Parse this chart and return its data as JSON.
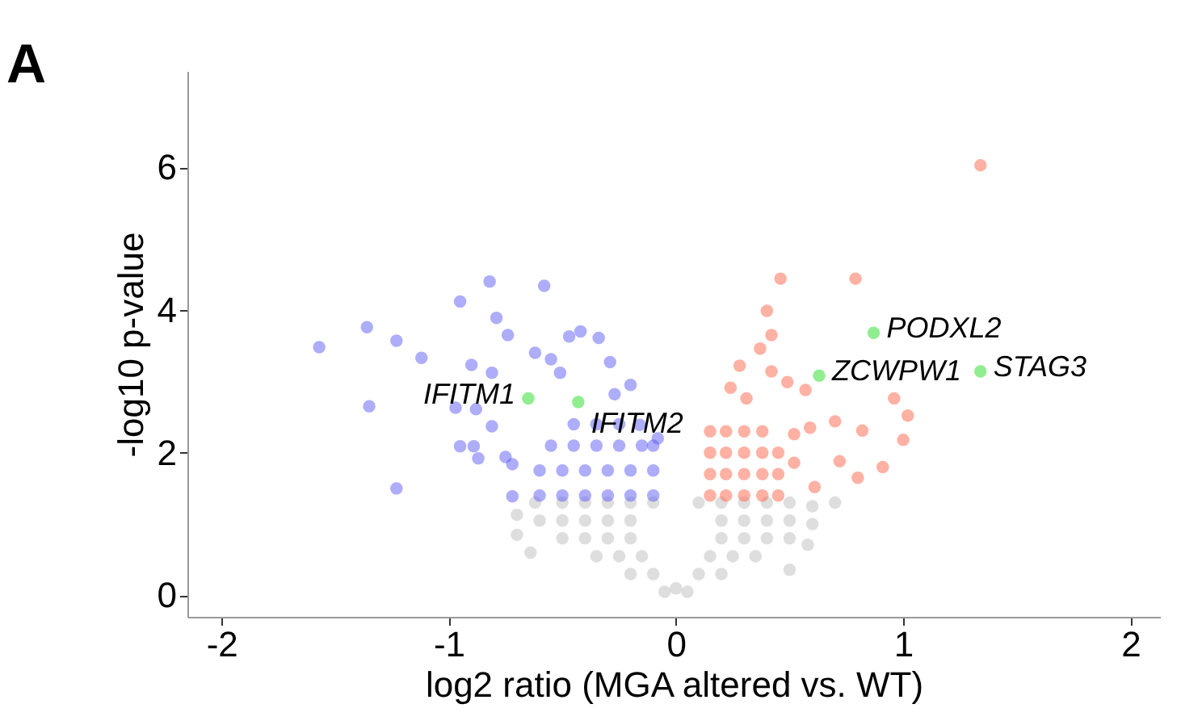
{
  "chart_data": {
    "type": "scatter",
    "xlabel": "log2 ratio (MGA altered vs. WT)",
    "ylabel": "-log10 p-value",
    "xlim": [
      -2.15,
      2.13
    ],
    "ylim": [
      -0.3,
      7.35
    ],
    "xticks": [
      -2,
      -1,
      0,
      1,
      2
    ],
    "yticks": [
      0,
      2,
      4,
      6
    ],
    "grid": false,
    "marker": "circle",
    "series": [
      {
        "color": "#bebebe",
        "x": [
          -0.05,
          0.0,
          0.05,
          -0.2,
          -0.1,
          0.1,
          0.2,
          -0.35,
          -0.25,
          -0.15,
          0.15,
          0.25,
          0.35,
          -0.5,
          -0.4,
          -0.3,
          -0.2,
          0.2,
          0.3,
          0.4,
          0.5,
          -0.6,
          -0.5,
          -0.4,
          -0.3,
          -0.2,
          0.2,
          0.3,
          0.4,
          0.5,
          0.6,
          -0.62,
          -0.5,
          -0.4,
          -0.3,
          -0.2,
          -0.1,
          0.1,
          0.2,
          0.3,
          0.4,
          0.5,
          0.6,
          -0.7,
          -0.7,
          -0.64,
          0.7,
          0.58,
          0.5
        ],
        "values": [
          0.05,
          0.1,
          0.05,
          0.3,
          0.3,
          0.3,
          0.3,
          0.55,
          0.55,
          0.55,
          0.55,
          0.55,
          0.55,
          0.8,
          0.8,
          0.8,
          0.8,
          0.8,
          0.8,
          0.8,
          0.8,
          1.05,
          1.05,
          1.05,
          1.05,
          1.05,
          1.05,
          1.05,
          1.05,
          1.05,
          1.0,
          1.3,
          1.3,
          1.3,
          1.3,
          1.3,
          1.3,
          1.3,
          1.3,
          1.3,
          1.3,
          1.3,
          1.25,
          1.13,
          0.85,
          0.6,
          1.3,
          0.71,
          0.36
        ]
      },
      {
        "color": "#5b5bf5",
        "x": [
          -1.57,
          -1.36,
          -1.23,
          -1.35,
          -1.23,
          -1.12,
          -0.95,
          -0.82,
          -0.58,
          -0.9,
          -0.89,
          -0.75,
          -0.79,
          -0.74,
          -0.47,
          -0.42,
          -0.34,
          -0.29,
          -0.2,
          -0.62,
          -0.55,
          -0.51,
          -0.81,
          -0.88,
          -0.97,
          -0.95,
          -0.87,
          -0.72,
          -0.81,
          -0.72,
          -0.27,
          -0.16,
          -0.6,
          -0.5,
          -0.4,
          -0.3,
          -0.2,
          -0.1,
          -0.6,
          -0.5,
          -0.4,
          -0.3,
          -0.2,
          -0.1,
          -0.55,
          -0.45,
          -0.35,
          -0.25,
          -0.15,
          -0.1,
          -0.45,
          -0.35,
          -0.25,
          -0.08
        ],
        "values": [
          3.48,
          3.76,
          3.57,
          2.65,
          1.5,
          3.33,
          4.12,
          4.4,
          4.34,
          3.23,
          2.09,
          1.94,
          3.89,
          3.65,
          3.63,
          3.7,
          3.61,
          3.27,
          2.95,
          3.4,
          3.31,
          3.12,
          3.12,
          2.61,
          2.63,
          2.09,
          1.92,
          1.39,
          2.37,
          1.84,
          2.82,
          2.39,
          1.4,
          1.4,
          1.4,
          1.4,
          1.4,
          1.4,
          1.75,
          1.75,
          1.75,
          1.75,
          1.75,
          1.75,
          2.1,
          2.1,
          2.1,
          2.1,
          2.1,
          2.1,
          2.4,
          2.4,
          2.4,
          2.2
        ]
      },
      {
        "color": "#ff6347",
        "x": [
          1.34,
          0.46,
          0.79,
          0.4,
          0.42,
          0.37,
          0.28,
          0.42,
          0.49,
          0.57,
          0.96,
          1.02,
          1.0,
          0.82,
          0.7,
          0.91,
          0.8,
          0.72,
          0.59,
          0.52,
          0.52,
          0.61,
          0.24,
          0.31,
          0.15,
          0.22,
          0.3,
          0.38,
          0.45,
          0.15,
          0.22,
          0.3,
          0.38,
          0.45,
          0.15,
          0.22,
          0.3,
          0.38,
          0.45,
          0.15,
          0.22,
          0.3,
          0.38
        ],
        "values": [
          6.03,
          4.44,
          4.44,
          3.99,
          3.65,
          3.46,
          3.22,
          3.14,
          2.99,
          2.88,
          2.76,
          2.52,
          2.18,
          2.31,
          2.44,
          1.8,
          1.65,
          1.88,
          2.35,
          2.26,
          1.86,
          1.52,
          2.91,
          2.76,
          1.4,
          1.4,
          1.4,
          1.4,
          1.4,
          1.7,
          1.7,
          1.7,
          1.7,
          1.7,
          2.0,
          2.0,
          2.0,
          2.0,
          2.0,
          2.3,
          2.3,
          2.3,
          2.3
        ]
      },
      {
        "color": "#90ee90",
        "x": [
          -0.65,
          -0.43,
          0.87,
          1.34,
          0.63
        ],
        "values": [
          2.76,
          2.71,
          3.68,
          3.14,
          3.08
        ]
      }
    ],
    "annotations": [
      "A",
      {
        "text": "IFITM1",
        "x": -0.65,
        "y": 2.76
      },
      {
        "text": "IFITM2",
        "x": -0.43,
        "y": 2.71
      },
      {
        "text": "PODXL2",
        "x": 0.87,
        "y": 3.68
      },
      {
        "text": "STAG3",
        "x": 1.34,
        "y": 3.14
      },
      {
        "text": "ZCWPW1",
        "x": 0.63,
        "y": 3.08
      }
    ]
  }
}
